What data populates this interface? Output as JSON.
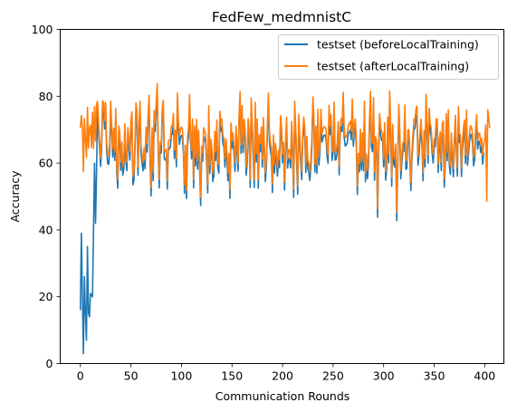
{
  "chart_data": {
    "type": "line",
    "title": "FedFew_medmnistC",
    "xlabel": "Communication Rounds",
    "ylabel": "Accuracy",
    "xlim": [
      -19.95,
      418.95
    ],
    "ylim": [
      0,
      100
    ],
    "xticks": [
      0,
      50,
      100,
      150,
      200,
      250,
      300,
      350,
      400
    ],
    "yticks": [
      0,
      20,
      40,
      60,
      80,
      100
    ],
    "legend_position": "upper-right",
    "n_points": 400,
    "series": [
      {
        "name": "testset (beforeLocalTraining)",
        "color": "#1f77b4",
        "x": [
          0,
          1,
          2,
          3,
          4,
          5,
          6,
          7,
          8,
          9,
          10,
          12,
          14,
          15,
          17,
          19,
          21,
          25,
          29,
          34,
          40,
          50,
          60,
          70,
          80,
          90,
          100,
          110,
          120,
          130,
          140,
          150,
          160,
          170,
          180,
          190,
          200,
          210,
          220,
          230,
          240,
          250,
          260,
          270,
          280,
          290,
          300,
          310,
          320,
          330,
          340,
          350,
          360,
          370,
          380,
          390,
          399
        ],
        "y": [
          16,
          39,
          20,
          3,
          26,
          15,
          7,
          35,
          15,
          14,
          21,
          20,
          60,
          42,
          73,
          53,
          62,
          54,
          58,
          52,
          68,
          57,
          66,
          75,
          60,
          63,
          66,
          72,
          63,
          67,
          57,
          65,
          73,
          71,
          67,
          70,
          54,
          74,
          63,
          65,
          73,
          66,
          70,
          68,
          67,
          74,
          65,
          61,
          67,
          67,
          60,
          69,
          72,
          67,
          63,
          68,
          65
        ]
      },
      {
        "name": "testset (afterLocalTraining)",
        "color": "#ff7f0e",
        "values": [
          70.5,
          74.2,
          70.7,
          57.4,
          73.3,
          67.2,
          61.8,
          76.7,
          64.5,
          70.2,
          71.4,
          64.6,
          75.2,
          64.4,
          76.9,
          66.6,
          77.6,
          78.5,
          71.9,
          67.1,
          61.5,
          66.8,
          78.6,
          78.2,
          72.7,
          78.1,
          66.2,
          62.4,
          62.1,
          66.2,
          78.5,
          71.4,
          64.3,
          70.4,
          63.3,
          76.3,
          59.6,
          55.0,
          71.1,
          69.1,
          60.3,
          66.3,
          58.9,
          60.8,
          71.8,
          63.2,
          60.2,
          70.6,
          67.2,
          63.4,
          72.7,
          75.4,
          56.0,
          57.4,
          66.5,
          78.0,
          75.3,
          58.9,
          71.7,
          78.5,
          65.5,
          62.4,
          60.2,
          64.6,
          60.8,
          70.7,
          65.8,
          74.7,
          80.3,
          61.8,
          52.7,
          70.5,
          57.2,
          75.7,
          71.9,
          78.1,
          83.7,
          66.2,
          55.1,
          66.3,
          65.5,
          76.3,
          78.8,
          63.9,
          63.4,
          64.1,
          54.7,
          66.3,
          66.9,
          67.2,
          71.1,
          71.1,
          74.9,
          63.9,
          69.8,
          61.4,
          81.0,
          72.7,
          68.1,
          70.2,
          70.8,
          70.0,
          65.2,
          53.5,
          65.3,
          51.9,
          67.7,
          70.4,
          80.5,
          69.4,
          63.8,
          73.2,
          55.1,
          71.1,
          61.7,
          73.1,
          60.7,
          69.8,
          60.2,
          49.8,
          65.1,
          63.0,
          70.6,
          69.5,
          68.7,
          61.9,
          53.6,
          77.2,
          59.4,
          67.1,
          65.0,
          57.0,
          58.7,
          69.5,
          63.3,
          72.9,
          61.1,
          59.5,
          75.5,
          72.1,
          73.2,
          68.3,
          67.3,
          61.3,
          67.3,
          63.2,
          57.2,
          62.9,
          52.0,
          72.0,
          67.0,
          69.0,
          65.0,
          60.0,
          71.1,
          65.3,
          60.1,
          74.1,
          81.4,
          65.4,
          77.2,
          65.7,
          73.1,
          70.0,
          58.9,
          62.4,
          73.3,
          69.6,
          55.2,
          79.5,
          72.2,
          64.0,
          55.2,
          78.2,
          62.8,
          73.2,
          55.0,
          68.4,
          65.9,
          70.8,
          61.3,
          73.6,
          65.4,
          57.0,
          61.3,
          71.4,
          81.0,
          69.2,
          66.1,
          64.4,
          53.7,
          68.4,
          59.5,
          65.9,
          62.5,
          58.6,
          63.8,
          61.1,
          74.2,
          70.6,
          62.6,
          66.2,
          54.4,
          66.9,
          73.7,
          61.0,
          64.0,
          63.8,
          61.1,
          72.4,
          64.4,
          52.2,
          78.5,
          71.0,
          62.4,
          53.2,
          74.6,
          68.3,
          62.2,
          57.6,
          69.2,
          73.8,
          70.5,
          59.7,
          68.0,
          60.8,
          59.7,
          57.3,
          61.2,
          67.2,
          79.8,
          74.4,
          59.8,
          71.1,
          59.4,
          76.1,
          61.9,
          65.7,
          76.1,
          68.8,
          69.9,
          70.9,
          70.8,
          70.1,
          64.8,
          62.5,
          77.3,
          71.0,
          74.5,
          63.3,
          65.7,
          78.2,
          63.4,
          63.6,
          65.8,
          72.4,
          59.0,
          71.4,
          73.3,
          71.9,
          81.2,
          70.2,
          67.6,
          67.9,
          68.6,
          71.3,
          71.8,
          72.5,
          69.5,
          79.2,
          67.6,
          71.7,
          73.2,
          67.2,
          53.1,
          62.9,
          59.9,
          70.1,
          60.5,
          69.1,
          60.2,
          78.5,
          56.9,
          62.7,
          57.8,
          62.0,
          73.0,
          81.5,
          67.2,
          65.9,
          79.6,
          57.4,
          67.9,
          66.6,
          46.3,
          65.0,
          74.8,
          71.2,
          69.3,
          69.1,
          61.4,
          72.1,
          57.4,
          60.7,
          73.7,
          62.6,
          81.6,
          70.7,
          55.6,
          71.6,
          62.3,
          61.3,
          65.7,
          45.3,
          61.9,
          77.6,
          69.5,
          57.8,
          62.5,
          66.1,
          66.1,
          77.4,
          60.6,
          61.0,
          69.9,
          70.0,
          62.9,
          54.3,
          63.5,
          68.8,
          73.2,
          72.8,
          76.1,
          77.1,
          61.9,
          64.9,
          69.2,
          73.2,
          67.0,
          57.2,
          69.8,
          61.4,
          80.6,
          71.1,
          62.5,
          76.4,
          72.1,
          70.5,
          65.6,
          62.5,
          67.2,
          67.5,
          73.2,
          73.2,
          59.7,
          66.8,
          69.3,
          60.3,
          71.7,
          72.6,
          55.3,
          62.4,
          74.8,
          63.2,
          75.9,
          61.9,
          59.1,
          69.0,
          63.5,
          58.4,
          67.8,
          74.3,
          65.4,
          58.6,
          76.9,
          68.8,
          68.3,
          58.5,
          66.6,
          70.6,
          72.9,
          62.4,
          75.9,
          61.9,
          65.4,
          69.2,
          71.2,
          70.6,
          68.4,
          61.7,
          63.4,
          70.2,
          74.5,
          66.7,
          69.0,
          68.9,
          65.7,
          67.5,
          62.2,
          65.7,
          67.2,
          71.4,
          48.6,
          76.0,
          73.3,
          70.5
        ]
      }
    ]
  }
}
